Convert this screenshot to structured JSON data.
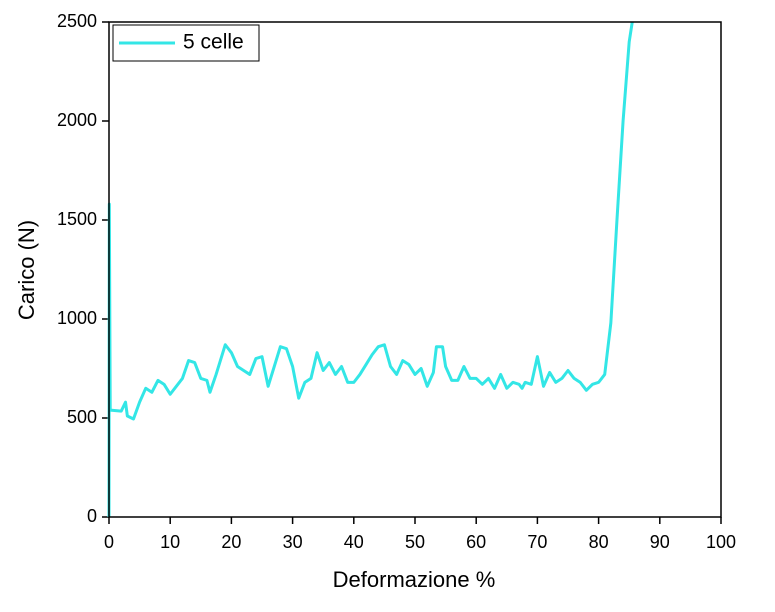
{
  "chart_data": {
    "type": "line",
    "xlabel": "Deformazione %",
    "ylabel": "Carico (N)",
    "x": [
      0,
      0.05,
      0.2,
      2,
      2.7,
      3,
      4,
      5,
      6,
      7,
      8,
      9,
      10,
      11,
      12,
      13,
      14,
      15,
      16,
      16.5,
      17.5,
      19,
      20,
      21,
      22,
      23,
      24,
      25,
      26,
      27,
      28,
      29,
      30,
      31,
      32,
      33,
      34,
      35,
      36,
      37,
      38,
      39,
      40,
      41,
      42,
      43,
      44,
      45,
      46,
      47,
      48,
      49,
      50,
      51,
      52,
      53,
      53.5,
      54.5,
      55,
      56,
      57,
      58,
      59,
      60,
      61,
      62,
      63,
      64,
      65,
      66,
      67,
      67.5,
      68,
      69,
      70,
      71,
      72,
      73,
      74,
      75,
      76,
      77,
      78,
      79,
      80,
      81,
      82,
      83,
      84,
      85,
      85.5
    ],
    "series": [
      {
        "name": "5 celle",
        "color": "#33e6e6",
        "values": [
          0,
          1580,
          540,
          535,
          580,
          510,
          495,
          580,
          650,
          630,
          690,
          670,
          620,
          660,
          700,
          790,
          780,
          700,
          690,
          630,
          720,
          870,
          830,
          760,
          740,
          720,
          800,
          810,
          660,
          760,
          860,
          850,
          760,
          600,
          680,
          700,
          830,
          740,
          780,
          720,
          760,
          680,
          680,
          720,
          770,
          820,
          860,
          870,
          760,
          720,
          790,
          770,
          720,
          750,
          660,
          730,
          860,
          860,
          760,
          690,
          690,
          760,
          700,
          700,
          670,
          700,
          650,
          720,
          650,
          680,
          670,
          650,
          680,
          670,
          810,
          660,
          730,
          680,
          700,
          740,
          700,
          680,
          640,
          670,
          680,
          720,
          980,
          1500,
          2000,
          2400,
          2500
        ]
      }
    ],
    "xlim": [
      0,
      100
    ],
    "ylim": [
      0,
      2500
    ],
    "xticks": [
      0,
      10,
      20,
      30,
      40,
      50,
      60,
      70,
      80,
      90,
      100
    ],
    "yticks": [
      0,
      500,
      1000,
      1500,
      2000,
      2500
    ],
    "legend": "upper left",
    "grid": false
  }
}
